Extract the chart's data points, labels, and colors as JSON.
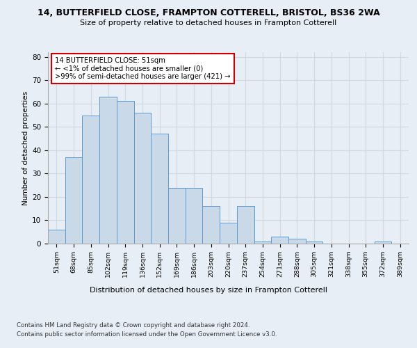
{
  "title1": "14, BUTTERFIELD CLOSE, FRAMPTON COTTERELL, BRISTOL, BS36 2WA",
  "title2": "Size of property relative to detached houses in Frampton Cotterell",
  "xlabel": "Distribution of detached houses by size in Frampton Cotterell",
  "ylabel": "Number of detached properties",
  "footnote1": "Contains HM Land Registry data © Crown copyright and database right 2024.",
  "footnote2": "Contains public sector information licensed under the Open Government Licence v3.0.",
  "categories": [
    "51sqm",
    "68sqm",
    "85sqm",
    "102sqm",
    "119sqm",
    "136sqm",
    "152sqm",
    "169sqm",
    "186sqm",
    "203sqm",
    "220sqm",
    "237sqm",
    "254sqm",
    "271sqm",
    "288sqm",
    "305sqm",
    "321sqm",
    "338sqm",
    "355sqm",
    "372sqm",
    "389sqm"
  ],
  "values": [
    6,
    37,
    55,
    63,
    61,
    56,
    47,
    24,
    24,
    16,
    9,
    16,
    1,
    3,
    2,
    1,
    0,
    0,
    0,
    1,
    0
  ],
  "bar_color": "#c9d9e8",
  "bar_edge_color": "#5b9bd5",
  "annotation_box_color": "#ffffff",
  "annotation_border_color": "#cc0000",
  "annotation_title": "14 BUTTERFIELD CLOSE: 51sqm",
  "annotation_line1": "← <1% of detached houses are smaller (0)",
  "annotation_line2": ">99% of semi-detached houses are larger (421) →",
  "ylim": [
    0,
    82
  ],
  "yticks": [
    0,
    10,
    20,
    30,
    40,
    50,
    60,
    70,
    80
  ],
  "grid_color": "#d0d8e4",
  "background_color": "#e8eef5",
  "plot_bg_color": "#e8eef5"
}
